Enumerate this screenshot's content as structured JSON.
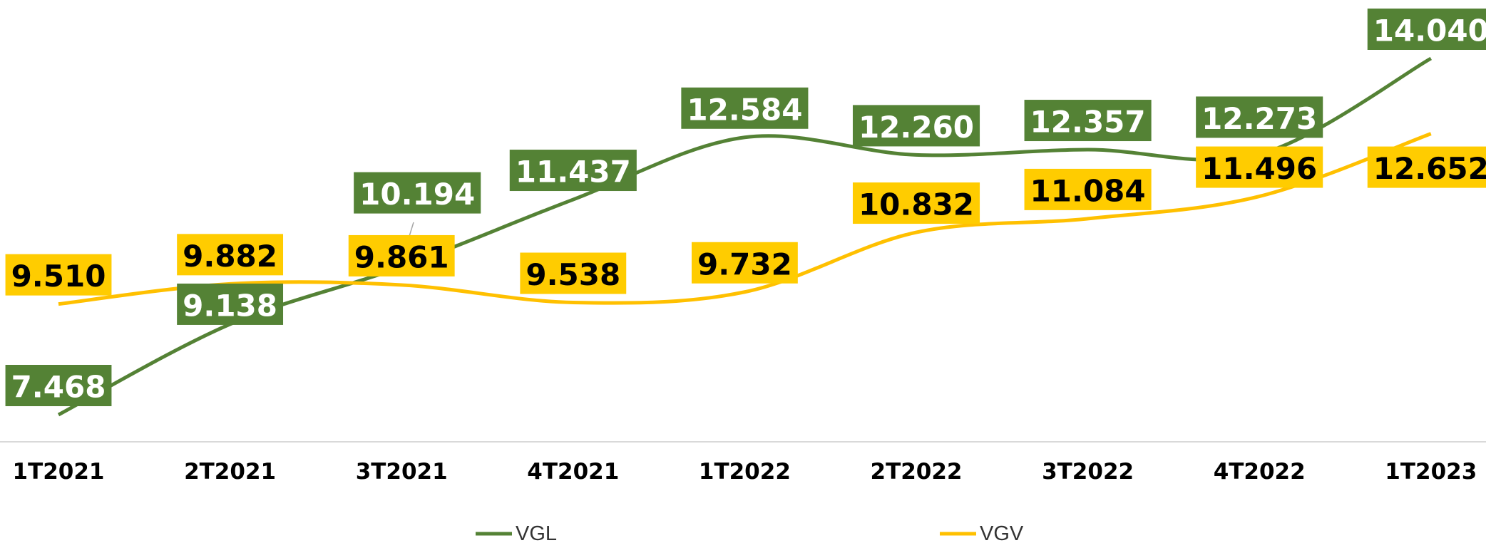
{
  "chart_data": {
    "type": "line",
    "categories": [
      "1T2021",
      "2T2021",
      "3T2021",
      "4T2021",
      "1T2022",
      "2T2022",
      "3T2022",
      "4T2022",
      "1T2023"
    ],
    "series": [
      {
        "name": "VGL",
        "color": "#548235",
        "values": [
          7468,
          9138,
          10194,
          11437,
          12584,
          12260,
          12357,
          12273,
          14040
        ],
        "value_labels": [
          "7.468",
          "9.138",
          "10.194",
          "11.437",
          "12.584",
          "12.260",
          "12.357",
          "12.273",
          "14.040"
        ]
      },
      {
        "name": "VGV",
        "color": "#ffc000",
        "values": [
          9510,
          9882,
          9861,
          9538,
          9732,
          10832,
          11084,
          11496,
          12652
        ],
        "value_labels": [
          "9.510",
          "9.882",
          "9.861",
          "9.538",
          "9.732",
          "10.832",
          "11.084",
          "11.496",
          "12.652"
        ]
      }
    ],
    "legend": "bottom"
  }
}
